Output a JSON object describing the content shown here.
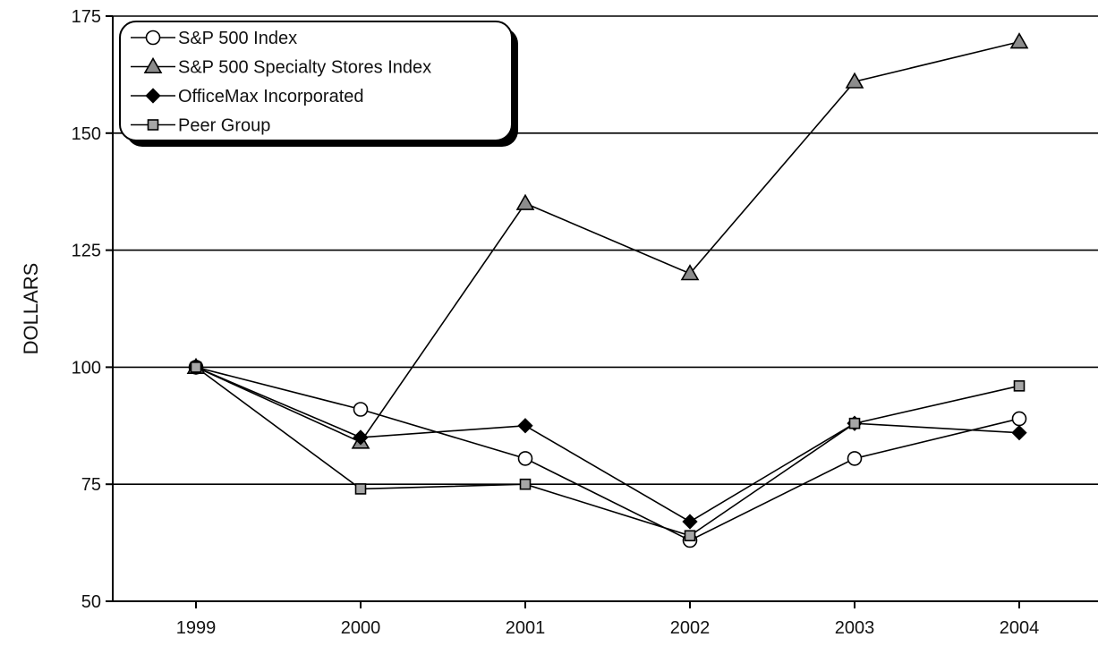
{
  "chart_data": {
    "type": "line",
    "title": "",
    "xlabel": "",
    "ylabel": "DOLLARS",
    "categories": [
      "1999",
      "2000",
      "2001",
      "2002",
      "2003",
      "2004"
    ],
    "ylim": [
      50,
      175
    ],
    "yticks": [
      50,
      75,
      100,
      125,
      150,
      175
    ],
    "grid": "horizontal",
    "legend_position": "top-left",
    "series": [
      {
        "name": "S&P 500 Index",
        "marker": "circle",
        "color": "#ffffff",
        "values": [
          100,
          91,
          80.5,
          63,
          80.5,
          89
        ]
      },
      {
        "name": "S&P 500 Specialty Stores Index",
        "marker": "triangle",
        "color": "#8c8c8c",
        "values": [
          100,
          84,
          135,
          120,
          161,
          169.5
        ]
      },
      {
        "name": "OfficeMax Incorporated",
        "marker": "diamond",
        "color": "#000000",
        "values": [
          100,
          85,
          87.5,
          67,
          88,
          86
        ]
      },
      {
        "name": "Peer Group",
        "marker": "square",
        "color": "#a6a6a6",
        "values": [
          100,
          74,
          75,
          64,
          88,
          96
        ]
      }
    ]
  }
}
